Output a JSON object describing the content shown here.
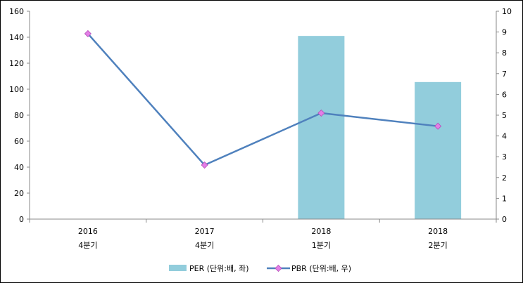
{
  "chart_data": {
    "type": "bar+line",
    "categories": [
      {
        "year": "2016",
        "quarter": "4분기"
      },
      {
        "year": "2017",
        "quarter": "4분기"
      },
      {
        "year": "2018",
        "quarter": "1분기"
      },
      {
        "year": "2018",
        "quarter": "2분기"
      }
    ],
    "series": [
      {
        "name": "PER (단위:배, 좌)",
        "type": "bar",
        "axis": "left",
        "color": "#92CDDC",
        "values": [
          null,
          null,
          141,
          105.5
        ]
      },
      {
        "name": "PBR (단위:배, 우)",
        "type": "line",
        "axis": "right",
        "color": "#4F81BD",
        "marker_color": "#E37FE7",
        "values": [
          8.92,
          2.6,
          5.1,
          4.47
        ]
      }
    ],
    "y_left": {
      "min": 0,
      "max": 160,
      "step": 20,
      "ticks": [
        "0",
        "20",
        "40",
        "60",
        "80",
        "100",
        "120",
        "140",
        "160"
      ]
    },
    "y_right": {
      "min": 0,
      "max": 10,
      "step": 1,
      "ticks": [
        "0",
        "1",
        "2",
        "3",
        "4",
        "5",
        "6",
        "7",
        "8",
        "9",
        "10"
      ]
    },
    "grid": false,
    "legend_position": "bottom"
  }
}
